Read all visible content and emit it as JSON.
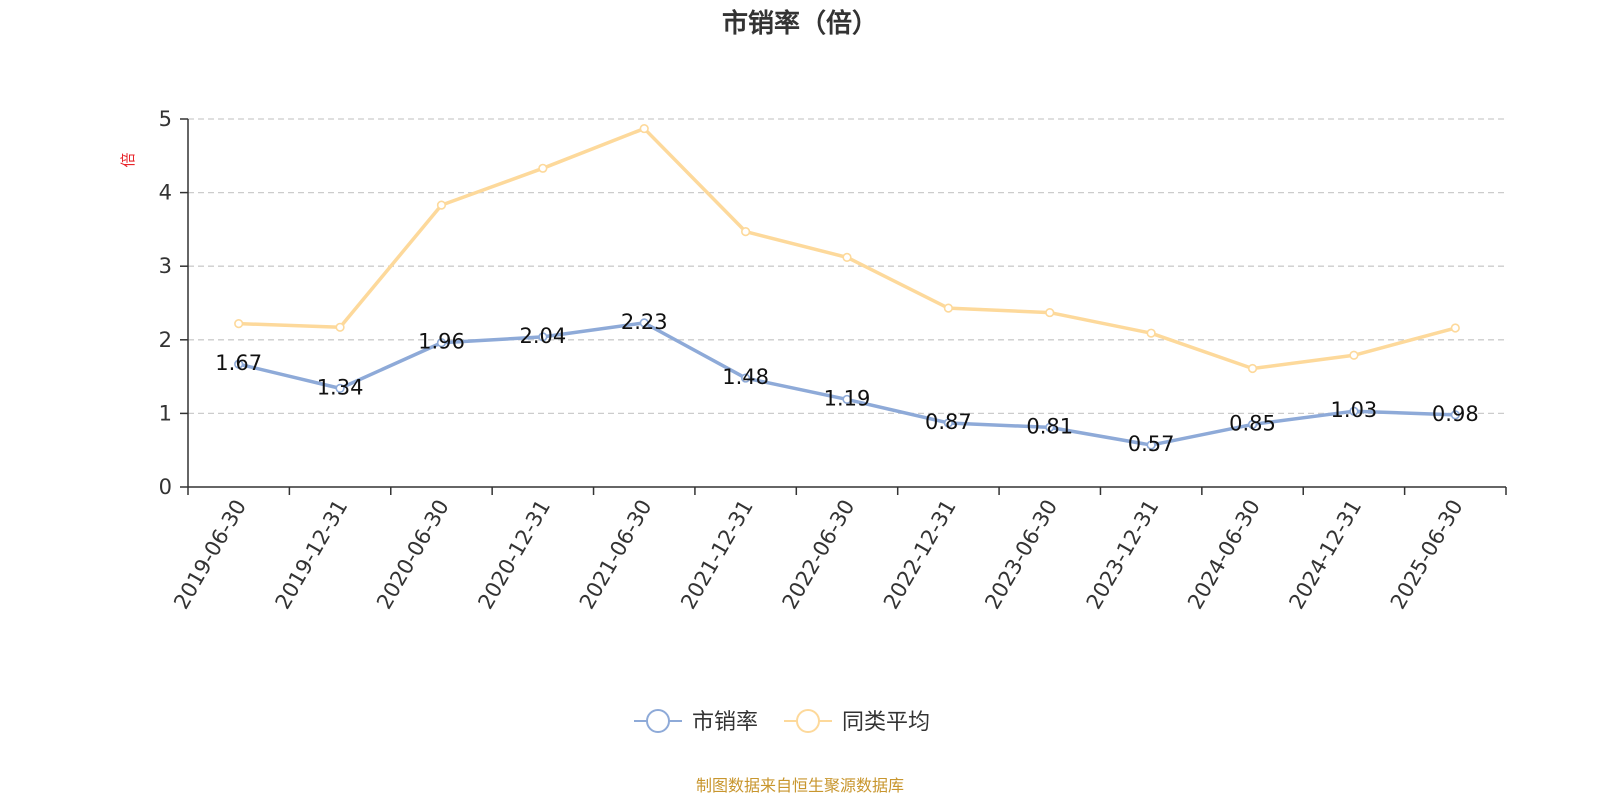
{
  "chart_data": {
    "type": "line",
    "title": "市销率（倍）",
    "ylabel": "倍",
    "ylim": [
      0,
      5
    ],
    "yticks": [
      0,
      1,
      2,
      3,
      4,
      5
    ],
    "grid": true,
    "legend_position": "bottom-center",
    "categories": [
      "2019-06-30",
      "2019-12-31",
      "2020-06-30",
      "2020-12-31",
      "2021-06-30",
      "2021-12-31",
      "2022-06-30",
      "2022-12-31",
      "2023-06-30",
      "2023-12-31",
      "2024-06-30",
      "2024-12-31",
      "2025-06-30"
    ],
    "series": [
      {
        "name": "市销率",
        "color": "#8eaad8",
        "show_labels": true,
        "values": [
          1.67,
          1.34,
          1.96,
          2.04,
          2.23,
          1.48,
          1.19,
          0.87,
          0.81,
          0.57,
          0.85,
          1.03,
          0.98
        ]
      },
      {
        "name": "同类平均",
        "color": "#fdd99b",
        "show_labels": false,
        "values": [
          2.22,
          2.17,
          3.83,
          4.33,
          4.87,
          3.47,
          3.12,
          2.43,
          2.37,
          2.09,
          1.61,
          1.79,
          2.16
        ]
      }
    ]
  },
  "colors": {
    "unit_label": "#e8252b",
    "source": "#c8962e",
    "grid": "#cccccc",
    "axis": "#333333"
  },
  "source_text": "制图数据来自恒生聚源数据库"
}
